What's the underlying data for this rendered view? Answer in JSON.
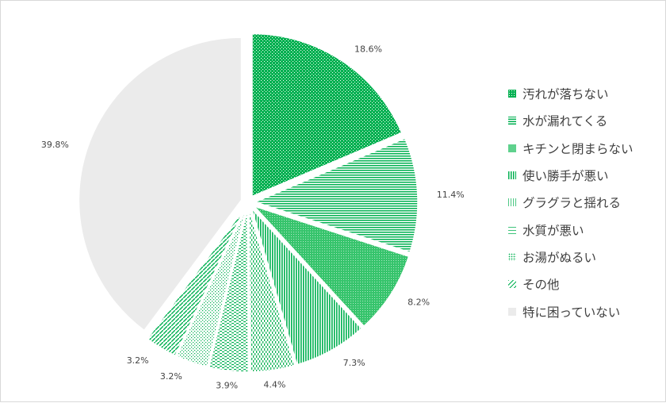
{
  "chart_data": {
    "type": "pie",
    "title": "",
    "start_angle_deg": 0,
    "direction": "clockwise",
    "legend_position": "right",
    "categories": [
      "汚れが落ちない",
      "水が漏れてくる",
      "キチンと閉まらない",
      "使い勝手が悪い",
      "グラグラと揺れる",
      "水質が悪い",
      "お湯がぬるい",
      "その他",
      "特に困っていない"
    ],
    "values": [
      18.6,
      11.4,
      8.2,
      7.3,
      4.4,
      3.9,
      3.2,
      3.2,
      39.8
    ],
    "value_labels": [
      "18.6%",
      "11.4%",
      "8.2%",
      "7.3%",
      "4.4%",
      "3.9%",
      "3.2%",
      "3.2%",
      "39.8%"
    ],
    "slice_styles": [
      {
        "pattern": "dots",
        "color": "#00b050"
      },
      {
        "pattern": "hlines",
        "color": "#00b050"
      },
      {
        "pattern": "dense-dots",
        "color": "#00b050"
      },
      {
        "pattern": "vlines",
        "color": "#00b050"
      },
      {
        "pattern": "dashes",
        "color": "#00b050"
      },
      {
        "pattern": "hdash",
        "color": "#00b050"
      },
      {
        "pattern": "sparse-dots",
        "color": "#00b050"
      },
      {
        "pattern": "diag",
        "color": "#00b050"
      },
      {
        "pattern": "solid",
        "color": "#ebebeb"
      }
    ]
  }
}
